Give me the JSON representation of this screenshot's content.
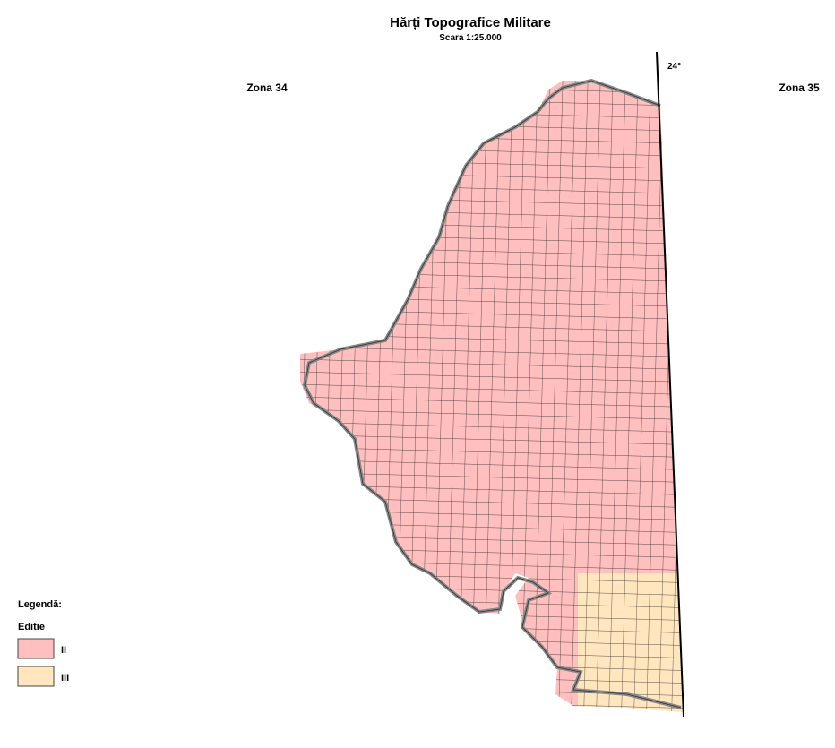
{
  "header": {
    "title": "Hărți Topografice Militare",
    "subtitle": "Scara 1:25.000"
  },
  "map": {
    "zone_west": "Zona 34",
    "zone_east": "Zona 35",
    "meridian": "24°"
  },
  "legend": {
    "title": "Legendă:",
    "subtitle": "Editie",
    "items": [
      {
        "label": "II",
        "color": "#ffbfbf"
      },
      {
        "label": "III",
        "color": "#ffe6bf"
      }
    ]
  }
}
